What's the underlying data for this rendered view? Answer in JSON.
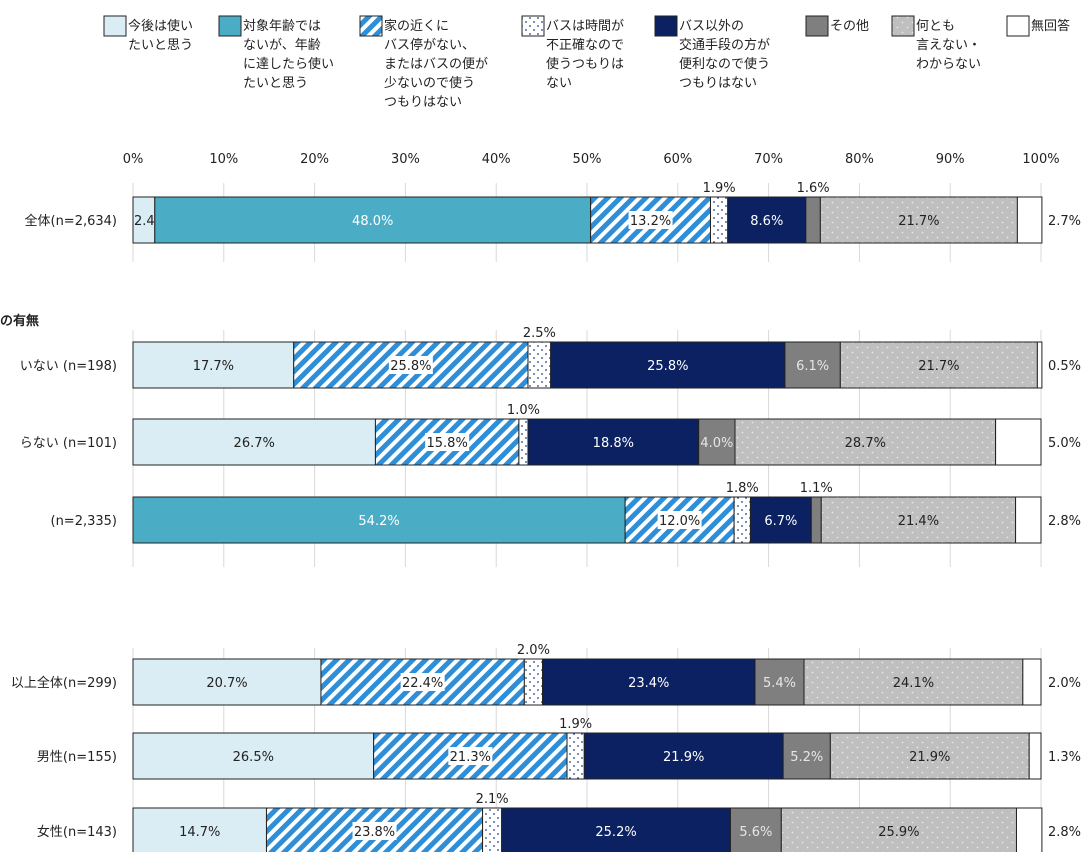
{
  "chart_data": {
    "type": "bar",
    "orientation": "horizontal-stacked-100",
    "xlim": [
      0,
      100
    ],
    "x_ticks": [
      "0%",
      "10%",
      "20%",
      "30%",
      "40%",
      "50%",
      "60%",
      "70%",
      "80%",
      "90%",
      "100%"
    ],
    "grid": true,
    "legend_position": "top",
    "series": [
      {
        "name": "今後は使いたいと思う",
        "lines": [
          "今後は使い",
          "たいと思う"
        ],
        "color": "#daedf4",
        "pattern": "solid"
      },
      {
        "name": "対象年齢ではないが、年齢に達したら使いたいと思う",
        "lines": [
          "対象年齢では",
          "ないが、年齢",
          "に達したら使い",
          "たいと思う"
        ],
        "color": "#4bacc6",
        "pattern": "solid"
      },
      {
        "name": "家の近くにバス停がない、またはバスの便が少ないので使うつもりはない",
        "lines": [
          "家の近くに",
          "バス停がない、",
          "またはバスの便が",
          "少ないので使う",
          "つもりはない"
        ],
        "color": "#2e8fd8",
        "pattern": "stripes"
      },
      {
        "name": "バスは時間が不正確なので使うつもりはない",
        "lines": [
          "バスは時間が",
          "不正確なので",
          "使うつもりは",
          "ない"
        ],
        "color": "#ffffff",
        "pattern": "dots"
      },
      {
        "name": "バス以外の交通手段の方が便利なので使うつもりはない",
        "lines": [
          "バス以外の",
          "交通手段の方が",
          "便利なので使う",
          "つもりはない"
        ],
        "color": "#0b2161",
        "pattern": "solid"
      },
      {
        "name": "その他",
        "lines": [
          "その他"
        ],
        "color": "#7f7f7f",
        "pattern": "solid"
      },
      {
        "name": "何とも言えない・わからない",
        "lines": [
          "何とも",
          "言えない・",
          "わからない"
        ],
        "color": "#bfbfbf",
        "pattern": "lightdots"
      },
      {
        "name": "無回答",
        "lines": [
          "無回答"
        ],
        "color": "#ffffff",
        "pattern": "solid"
      }
    ],
    "sections": [
      {
        "title": "",
        "rows": [
          0
        ]
      },
      {
        "title": "の有無",
        "rows": [
          1,
          2,
          3
        ]
      },
      {
        "title": "",
        "rows": [
          4,
          5,
          6
        ]
      }
    ],
    "rows": [
      {
        "label": "全体(n=2,634)",
        "values": [
          2.4,
          48.0,
          13.2,
          1.9,
          8.6,
          1.6,
          21.7,
          2.7
        ],
        "labels": [
          "2.4%",
          "48.0%",
          "13.2%",
          "1.9%",
          "8.6%",
          "1.6%",
          "21.7%",
          "2.7%"
        ]
      },
      {
        "label": "いない (n=198)",
        "values": [
          17.7,
          0,
          25.8,
          2.5,
          25.8,
          6.1,
          21.7,
          0.5
        ],
        "labels": [
          "17.7%",
          "",
          "25.8%",
          "2.5%",
          "25.8%",
          "6.1%",
          "21.7%",
          "0.5%"
        ]
      },
      {
        "label": "らない (n=101)",
        "values": [
          26.7,
          0,
          15.8,
          1.0,
          18.8,
          4.0,
          28.7,
          5.0
        ],
        "labels": [
          "26.7%",
          "",
          "15.8%",
          "1.0%",
          "18.8%",
          "4.0%",
          "28.7%",
          "5.0%"
        ]
      },
      {
        "label": "(n=2,335)",
        "values": [
          0,
          54.2,
          12.0,
          1.8,
          6.7,
          1.1,
          21.4,
          2.8
        ],
        "labels": [
          "",
          "54.2%",
          "12.0%",
          "1.8%",
          "6.7%",
          "1.1%",
          "21.4%",
          "2.8%"
        ]
      },
      {
        "label": "以上全体(n=299)",
        "values": [
          20.7,
          0,
          22.4,
          2.0,
          23.4,
          5.4,
          24.1,
          2.0
        ],
        "labels": [
          "20.7%",
          "",
          "22.4%",
          "2.0%",
          "23.4%",
          "5.4%",
          "24.1%",
          "2.0%"
        ]
      },
      {
        "label": "男性(n=155)",
        "values": [
          26.5,
          0,
          21.3,
          1.9,
          21.9,
          5.2,
          21.9,
          1.3
        ],
        "labels": [
          "26.5%",
          "",
          "21.3%",
          "1.9%",
          "21.9%",
          "5.2%",
          "21.9%",
          "1.3%"
        ]
      },
      {
        "label": "女性(n=143)",
        "values": [
          14.7,
          0,
          23.8,
          2.1,
          25.2,
          5.6,
          25.9,
          2.8
        ],
        "labels": [
          "14.7%",
          "",
          "23.8%",
          "2.1%",
          "25.2%",
          "5.6%",
          "25.9%",
          "2.8%"
        ]
      }
    ]
  }
}
